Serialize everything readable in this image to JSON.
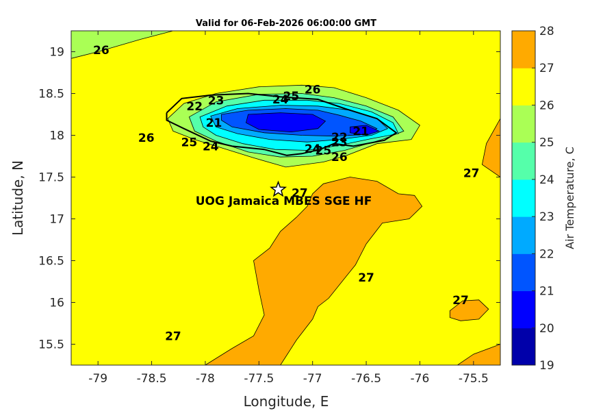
{
  "chart_data": {
    "type": "heatmap",
    "title": "Valid for 06-Feb-2026 06:00:00 GMT",
    "xlabel": "Longitude, E",
    "ylabel": "Latitude, N",
    "xlim": [
      -79.25,
      -75.25
    ],
    "ylim": [
      15.25,
      19.25
    ],
    "xticks": [
      -79,
      -78.5,
      -78,
      -77.5,
      -77,
      -76.5,
      -76,
      -75.5
    ],
    "xtick_labels": [
      "-79",
      "-78.5",
      "-78",
      "-77.5",
      "-77",
      "-76.5",
      "-76",
      "-75.5"
    ],
    "yticks": [
      19,
      18.5,
      18,
      17.5,
      17,
      16.5,
      16,
      15.5
    ],
    "ytick_labels": [
      "19",
      "18.5",
      "18",
      "17.5",
      "17",
      "16.5",
      "16",
      "15.5"
    ],
    "colorbar": {
      "label": "Air Temperature, C",
      "levels": [
        19,
        20,
        21,
        22,
        23,
        24,
        25,
        26,
        27,
        28
      ],
      "tick_labels": [
        "19",
        "20",
        "21",
        "22",
        "23",
        "24",
        "25",
        "26",
        "27",
        "28"
      ],
      "colors": [
        "#0000aa",
        "#0000ff",
        "#0055ff",
        "#00aaff",
        "#00ffff",
        "#55ffaa",
        "#aaff55",
        "#ffff00",
        "#ffaa00",
        "#ff5500"
      ]
    },
    "background_level_band": [
      26,
      27
    ],
    "regions": [
      {
        "name": "nw-corner",
        "band": [
          25,
          26
        ],
        "polygon": [
          [
            -79.25,
            18.92
          ],
          [
            -79.0,
            19.0
          ],
          [
            -78.6,
            19.15
          ],
          [
            -78.3,
            19.25
          ],
          [
            -79.25,
            19.25
          ]
        ]
      },
      {
        "name": "jamaica-25",
        "band": [
          25,
          26
        ],
        "polygon": [
          [
            -78.35,
            18.2
          ],
          [
            -78.2,
            18.38
          ],
          [
            -77.9,
            18.5
          ],
          [
            -77.5,
            18.58
          ],
          [
            -77.1,
            18.6
          ],
          [
            -76.8,
            18.57
          ],
          [
            -76.5,
            18.45
          ],
          [
            -76.2,
            18.3
          ],
          [
            -76.0,
            18.12
          ],
          [
            -76.08,
            17.95
          ],
          [
            -76.4,
            17.9
          ],
          [
            -76.7,
            17.75
          ],
          [
            -76.9,
            17.68
          ],
          [
            -77.25,
            17.62
          ],
          [
            -77.55,
            17.73
          ],
          [
            -77.85,
            17.85
          ],
          [
            -78.1,
            17.95
          ],
          [
            -78.3,
            18.05
          ]
        ]
      },
      {
        "name": "jamaica-24",
        "band": [
          24,
          25
        ],
        "polygon": [
          [
            -78.15,
            18.22
          ],
          [
            -77.9,
            18.4
          ],
          [
            -77.5,
            18.49
          ],
          [
            -77.1,
            18.5
          ],
          [
            -76.8,
            18.45
          ],
          [
            -76.5,
            18.35
          ],
          [
            -76.25,
            18.22
          ],
          [
            -76.15,
            18.05
          ],
          [
            -76.35,
            17.95
          ],
          [
            -76.7,
            17.82
          ],
          [
            -77.0,
            17.75
          ],
          [
            -77.3,
            17.74
          ],
          [
            -77.6,
            17.8
          ],
          [
            -77.9,
            17.93
          ],
          [
            -78.1,
            18.05
          ]
        ]
      },
      {
        "name": "jamaica-23",
        "band": [
          23,
          24
        ],
        "polygon": [
          [
            -78.05,
            18.22
          ],
          [
            -77.8,
            18.35
          ],
          [
            -77.45,
            18.42
          ],
          [
            -77.05,
            18.42
          ],
          [
            -76.75,
            18.38
          ],
          [
            -76.45,
            18.28
          ],
          [
            -76.25,
            18.15
          ],
          [
            -76.2,
            18.02
          ],
          [
            -76.45,
            17.96
          ],
          [
            -76.75,
            17.88
          ],
          [
            -77.05,
            17.82
          ],
          [
            -77.35,
            17.83
          ],
          [
            -77.65,
            17.9
          ],
          [
            -77.9,
            18.0
          ],
          [
            -78.02,
            18.1
          ]
        ]
      },
      {
        "name": "jamaica-22",
        "band": [
          22,
          23
        ],
        "polygon": [
          [
            -77.95,
            18.23
          ],
          [
            -77.7,
            18.32
          ],
          [
            -77.3,
            18.36
          ],
          [
            -76.95,
            18.35
          ],
          [
            -76.65,
            18.3
          ],
          [
            -76.4,
            18.2
          ],
          [
            -76.3,
            18.08
          ],
          [
            -76.45,
            18.0
          ],
          [
            -76.75,
            17.95
          ],
          [
            -77.05,
            17.92
          ],
          [
            -77.4,
            17.95
          ],
          [
            -77.7,
            18.02
          ],
          [
            -77.9,
            18.1
          ]
        ]
      },
      {
        "name": "jamaica-21",
        "band": [
          21,
          22
        ],
        "polygon": [
          [
            -77.85,
            18.25
          ],
          [
            -77.6,
            18.3
          ],
          [
            -77.25,
            18.32
          ],
          [
            -76.95,
            18.3
          ],
          [
            -76.75,
            18.24
          ],
          [
            -76.55,
            18.17
          ],
          [
            -76.4,
            18.08
          ],
          [
            -76.5,
            18.01
          ],
          [
            -76.8,
            17.99
          ],
          [
            -77.1,
            18.0
          ],
          [
            -77.45,
            18.03
          ],
          [
            -77.75,
            18.1
          ],
          [
            -77.85,
            18.18
          ]
        ]
      },
      {
        "name": "jamaica-20",
        "band": [
          20,
          21
        ],
        "polygon": [
          [
            -77.6,
            18.25
          ],
          [
            -77.3,
            18.27
          ],
          [
            -77.0,
            18.25
          ],
          [
            -76.88,
            18.17
          ],
          [
            -76.95,
            18.08
          ],
          [
            -77.2,
            18.04
          ],
          [
            -77.5,
            18.07
          ],
          [
            -77.62,
            18.15
          ]
        ]
      },
      {
        "name": "east-blob-21",
        "band": [
          20,
          21
        ],
        "polygon": [
          [
            -76.65,
            18.1
          ],
          [
            -76.5,
            18.12
          ],
          [
            -76.38,
            18.05
          ],
          [
            -76.5,
            18.0
          ],
          [
            -76.65,
            18.03
          ]
        ]
      },
      {
        "name": "ridge-27",
        "band": [
          27,
          28
        ],
        "polygon": [
          [
            -78.0,
            15.25
          ],
          [
            -77.75,
            15.45
          ],
          [
            -77.55,
            15.6
          ],
          [
            -77.45,
            15.85
          ],
          [
            -77.5,
            16.15
          ],
          [
            -77.55,
            16.5
          ],
          [
            -77.4,
            16.65
          ],
          [
            -77.3,
            16.85
          ],
          [
            -77.15,
            17.02
          ],
          [
            -77.05,
            17.15
          ],
          [
            -77.0,
            17.3
          ],
          [
            -76.9,
            17.42
          ],
          [
            -76.65,
            17.5
          ],
          [
            -76.4,
            17.45
          ],
          [
            -76.2,
            17.3
          ],
          [
            -76.05,
            17.28
          ],
          [
            -75.98,
            17.15
          ],
          [
            -76.1,
            17.0
          ],
          [
            -76.35,
            16.95
          ],
          [
            -76.5,
            16.7
          ],
          [
            -76.6,
            16.45
          ],
          [
            -76.85,
            16.05
          ],
          [
            -76.95,
            15.95
          ],
          [
            -77.0,
            15.8
          ],
          [
            -77.15,
            15.55
          ],
          [
            -77.3,
            15.25
          ]
        ]
      },
      {
        "name": "small-27",
        "band": [
          27,
          28
        ],
        "polygon": [
          [
            -75.72,
            15.9
          ],
          [
            -75.6,
            16.02
          ],
          [
            -75.45,
            16.03
          ],
          [
            -75.36,
            15.92
          ],
          [
            -75.45,
            15.8
          ],
          [
            -75.62,
            15.78
          ],
          [
            -75.72,
            15.82
          ]
        ]
      },
      {
        "name": "east-edge-27",
        "band": [
          27,
          28
        ],
        "polygon": [
          [
            -75.25,
            18.2
          ],
          [
            -75.38,
            17.9
          ],
          [
            -75.42,
            17.65
          ],
          [
            -75.25,
            17.5
          ]
        ]
      },
      {
        "name": "se-corner-27",
        "band": [
          27,
          28
        ],
        "polygon": [
          [
            -75.25,
            15.5
          ],
          [
            -75.5,
            15.38
          ],
          [
            -75.65,
            15.25
          ],
          [
            -75.25,
            15.25
          ]
        ]
      }
    ],
    "coastline": [
      [
        -78.36,
        18.27
      ],
      [
        -78.22,
        18.44
      ],
      [
        -77.95,
        18.48
      ],
      [
        -77.6,
        18.5
      ],
      [
        -77.3,
        18.46
      ],
      [
        -76.95,
        18.43
      ],
      [
        -76.7,
        18.32
      ],
      [
        -76.4,
        18.2
      ],
      [
        -76.22,
        18.03
      ],
      [
        -76.33,
        17.94
      ],
      [
        -76.62,
        17.87
      ],
      [
        -76.8,
        17.9
      ],
      [
        -76.93,
        17.83
      ],
      [
        -77.1,
        17.78
      ],
      [
        -77.24,
        17.76
      ],
      [
        -77.45,
        17.83
      ],
      [
        -77.75,
        17.87
      ],
      [
        -77.95,
        17.93
      ],
      [
        -78.2,
        18.08
      ],
      [
        -78.36,
        18.18
      ]
    ],
    "contour_labels": [
      {
        "text": "26",
        "lon": -78.97,
        "lat": 19.02
      },
      {
        "text": "26",
        "lon": -77.0,
        "lat": 18.55
      },
      {
        "text": "25",
        "lon": -77.2,
        "lat": 18.47
      },
      {
        "text": "24",
        "lon": -77.3,
        "lat": 18.43
      },
      {
        "text": "23",
        "lon": -77.9,
        "lat": 18.42
      },
      {
        "text": "22",
        "lon": -78.1,
        "lat": 18.35
      },
      {
        "text": "21",
        "lon": -77.92,
        "lat": 18.15
      },
      {
        "text": "26",
        "lon": -78.55,
        "lat": 17.97
      },
      {
        "text": "25",
        "lon": -78.15,
        "lat": 17.92
      },
      {
        "text": "24",
        "lon": -77.95,
        "lat": 17.87
      },
      {
        "text": "21",
        "lon": -76.55,
        "lat": 18.05
      },
      {
        "text": "22",
        "lon": -76.75,
        "lat": 17.98
      },
      {
        "text": "23",
        "lon": -76.75,
        "lat": 17.92
      },
      {
        "text": "24",
        "lon": -77.0,
        "lat": 17.84
      },
      {
        "text": "25",
        "lon": -76.9,
        "lat": 17.82
      },
      {
        "text": "26",
        "lon": -76.75,
        "lat": 17.74
      },
      {
        "text": "27",
        "lon": -77.12,
        "lat": 17.31
      },
      {
        "text": "27",
        "lon": -75.52,
        "lat": 17.55
      },
      {
        "text": "27",
        "lon": -76.5,
        "lat": 16.3
      },
      {
        "text": "27",
        "lon": -75.62,
        "lat": 16.03
      },
      {
        "text": "27",
        "lon": -78.3,
        "lat": 15.6
      }
    ],
    "marker": {
      "label": "UOG Jamaica MBES SGE HF",
      "lon": -77.32,
      "lat": 17.35,
      "symbol": "star"
    }
  }
}
